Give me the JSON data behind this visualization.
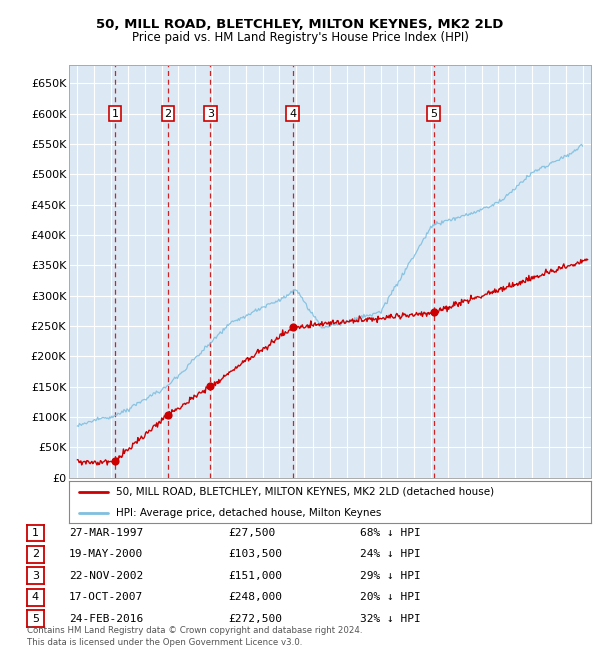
{
  "title1": "50, MILL ROAD, BLETCHLEY, MILTON KEYNES, MK2 2LD",
  "title2": "Price paid vs. HM Land Registry's House Price Index (HPI)",
  "background_color": "#dce9f5",
  "plot_bg_color": "#dce9f5",
  "grid_color": "#ffffff",
  "sale_dates_x": [
    1997.23,
    2000.38,
    2002.9,
    2007.79,
    2016.15
  ],
  "sale_prices_y": [
    27500,
    103500,
    151000,
    248000,
    272500
  ],
  "sale_labels": [
    "1",
    "2",
    "3",
    "4",
    "5"
  ],
  "legend_line1": "50, MILL ROAD, BLETCHLEY, MILTON KEYNES, MK2 2LD (detached house)",
  "legend_line2": "HPI: Average price, detached house, Milton Keynes",
  "table_data": [
    [
      "1",
      "27-MAR-1997",
      "£27,500",
      "68% ↓ HPI"
    ],
    [
      "2",
      "19-MAY-2000",
      "£103,500",
      "24% ↓ HPI"
    ],
    [
      "3",
      "22-NOV-2002",
      "£151,000",
      "29% ↓ HPI"
    ],
    [
      "4",
      "17-OCT-2007",
      "£248,000",
      "20% ↓ HPI"
    ],
    [
      "5",
      "24-FEB-2016",
      "£272,500",
      "32% ↓ HPI"
    ]
  ],
  "footer": "Contains HM Land Registry data © Crown copyright and database right 2024.\nThis data is licensed under the Open Government Licence v3.0.",
  "hpi_color": "#7fbfdf",
  "sale_color": "#cc0000",
  "dashed_color": "#cc0000",
  "ytick_labels": [
    "£0",
    "£50K",
    "£100K",
    "£150K",
    "£200K",
    "£250K",
    "£300K",
    "£350K",
    "£400K",
    "£450K",
    "£500K",
    "£550K",
    "£600K",
    "£650K"
  ],
  "ytick_values": [
    0,
    50000,
    100000,
    150000,
    200000,
    250000,
    300000,
    350000,
    400000,
    450000,
    500000,
    550000,
    600000,
    650000
  ],
  "ylim": [
    0,
    680000
  ],
  "xlim_start": 1994.5,
  "xlim_end": 2025.5
}
